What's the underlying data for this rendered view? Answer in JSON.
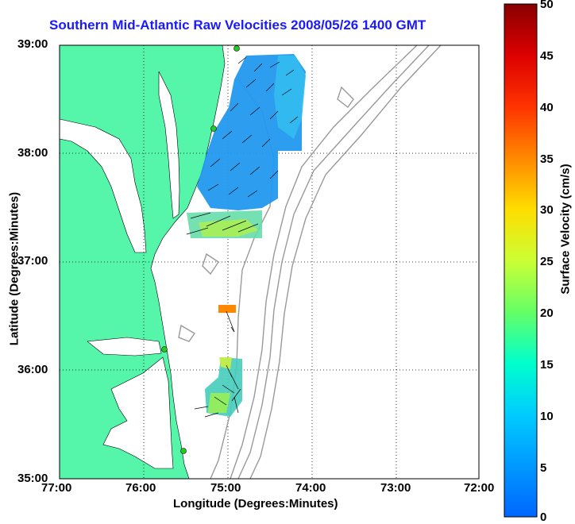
{
  "title": "Southern Mid-Atlantic Raw Velocities 2008/05/26 1400 GMT",
  "axes": {
    "xlabel": "Longitude (Degrees:Minutes)",
    "ylabel": "Latitude (Degrees:Minutes)",
    "xticks": [
      "77:00",
      "76:00",
      "75:00",
      "74:00",
      "73:00",
      "72:00"
    ],
    "yticks": [
      "39:00",
      "38:00",
      "37:00",
      "36:00",
      "35:00"
    ],
    "grid": "dotted"
  },
  "colorbar": {
    "label": "Surface Velocity (cm/s)",
    "ticks": [
      "50",
      "45",
      "40",
      "35",
      "30",
      "25",
      "20",
      "15",
      "10",
      "5",
      "0"
    ],
    "range": [
      0,
      50
    ],
    "colormap": "jet"
  },
  "colors": {
    "land": "#55f5aa",
    "water": "#ffffff",
    "title": "#1a1aff",
    "bathymetry": "#999999",
    "station": "#22cc22"
  }
}
